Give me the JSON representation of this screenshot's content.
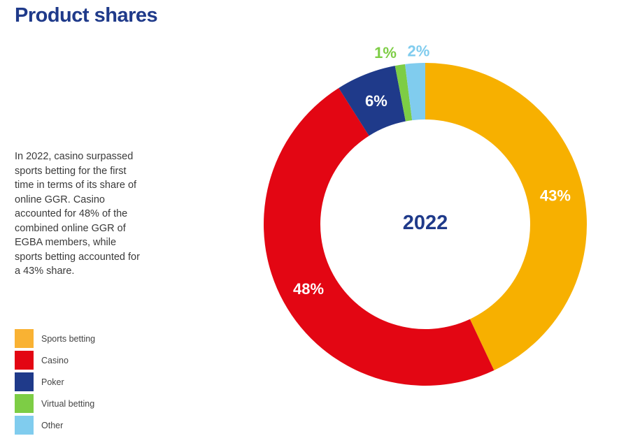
{
  "title": "Product shares",
  "description": "In 2022, casino surpassed sports betting for the first time in terms of its share of online GGR. Casino accounted for 48% of the combined online GGR of EGBA members, while sports betting accounted for a 43% share.",
  "chart_data": {
    "type": "pie",
    "donut": true,
    "center_label": "2022",
    "categories": [
      "Sports betting",
      "Casino",
      "Poker",
      "Virtual betting",
      "Other"
    ],
    "values": [
      43,
      48,
      6,
      1,
      2
    ],
    "data_labels": [
      "43%",
      "48%",
      "6%",
      "1%",
      "2%"
    ],
    "colors": [
      "#f7b000",
      "#e30613",
      "#1f3a8a",
      "#7dcd45",
      "#80ccee"
    ],
    "legend_colors": [
      "#f9b233",
      "#e30613",
      "#1f3a8a",
      "#7dcd45",
      "#80ccee"
    ],
    "legend_position": "left-bottom"
  }
}
